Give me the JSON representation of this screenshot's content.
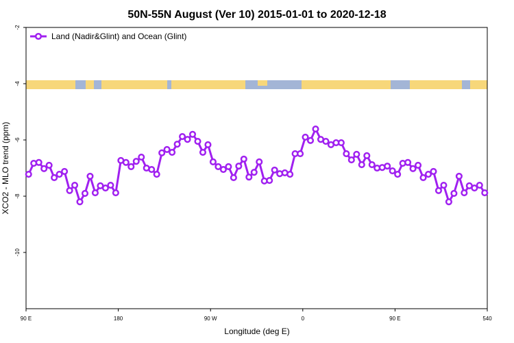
{
  "chart_data": {
    "type": "line",
    "title": "50N-55N August (Ver 10)   2015-01-01 to 2020-12-18",
    "x_label": "Longitude (deg E)",
    "y_label": "XCO2 - MLO trend (ppm)",
    "xlim": [
      90,
      540
    ],
    "ylim": [
      -12,
      -2
    ],
    "xticks": [
      {
        "value": 90,
        "label": "90 E"
      },
      180,
      {
        "value": 270,
        "label": "90 W"
      },
      {
        "value": 360,
        "label": "0"
      },
      {
        "value": 450,
        "label": "90 E"
      },
      540
    ],
    "yticks": [
      -2,
      -4,
      -6,
      -8,
      -10
    ],
    "legend": "top-left",
    "x": [
      92.5,
      97.5,
      102.5,
      107.5,
      112.5,
      117.5,
      122.5,
      127.5,
      132.5,
      137.5,
      142.5,
      147.5,
      152.5,
      157.5,
      162.5,
      167.5,
      172.5,
      177.5,
      182.5,
      187.5,
      192.5,
      197.5,
      202.5,
      207.5,
      212.5,
      217.5,
      222.5,
      227.5,
      232.5,
      237.5,
      242.5,
      247.5,
      252.5,
      257.5,
      262.5,
      267.5,
      272.5,
      277.5,
      282.5,
      287.5,
      292.5,
      297.5,
      302.5,
      307.5,
      312.5,
      317.5,
      322.5,
      327.5,
      332.5,
      337.5,
      342.5,
      347.5,
      352.5,
      357.5,
      362.5,
      367.5,
      372.5,
      377.5,
      382.5,
      387.5,
      392.5,
      397.5,
      402.5,
      407.5,
      412.5,
      417.5,
      422.5,
      427.5,
      432.5,
      437.5,
      442.5,
      447.5,
      452.5,
      457.5,
      462.5,
      467.5,
      472.5,
      477.5,
      482.5,
      487.5,
      492.5,
      497.5,
      502.5,
      507.5,
      512.5,
      517.5,
      522.5,
      527.5,
      532.5,
      537.5
    ],
    "series": [
      {
        "name": "Land (Nadir&Glint) and Ocean (Glint)",
        "color": "#a020f0",
        "values": [
          -7.22,
          -6.83,
          -6.8,
          -7.02,
          -6.9,
          -7.34,
          -7.22,
          -7.12,
          -7.8,
          -7.61,
          -8.2,
          -7.9,
          -7.29,
          -7.88,
          -7.63,
          -7.71,
          -7.61,
          -7.88,
          -6.73,
          -6.8,
          -6.95,
          -6.76,
          -6.61,
          -7.0,
          -7.05,
          -7.22,
          -6.46,
          -6.34,
          -6.44,
          -6.15,
          -5.88,
          -5.98,
          -5.8,
          -6.05,
          -6.44,
          -6.17,
          -6.78,
          -6.95,
          -7.05,
          -6.95,
          -7.34,
          -6.93,
          -6.68,
          -7.32,
          -7.15,
          -6.78,
          -7.46,
          -7.44,
          -7.07,
          -7.2,
          -7.17,
          -7.22,
          -6.49,
          -6.49,
          -5.9,
          -6.02,
          -5.61,
          -5.98,
          -6.05,
          -6.17,
          -6.1,
          -6.1,
          -6.49,
          -6.71,
          -6.51,
          -6.88,
          -6.56,
          -6.88,
          -7.0,
          -6.98,
          -6.93,
          -7.1,
          -7.22,
          -6.83,
          -6.8,
          -7.02,
          -6.9,
          -7.34,
          -7.22,
          -7.12,
          -7.8,
          -7.61,
          -8.2,
          -7.9,
          -7.29,
          -7.88,
          -7.63,
          -7.71,
          -7.61,
          -7.88
        ]
      }
    ]
  }
}
